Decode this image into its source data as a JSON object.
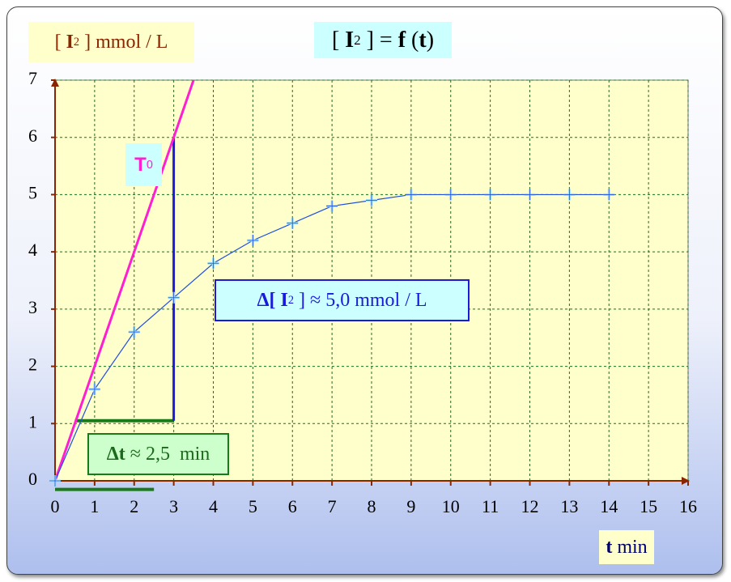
{
  "chart_data": {
    "type": "line",
    "title": [
      "[ ",
      "I",
      "2",
      " ] = ",
      "f",
      " (",
      "t",
      ")"
    ],
    "y_label": [
      "[ ",
      "I",
      "2",
      " ] mmol / L"
    ],
    "x_label": [
      "t",
      " min"
    ],
    "x": [
      0,
      1,
      2,
      3,
      4,
      5,
      6,
      7,
      8,
      9,
      10,
      11,
      12,
      13,
      14
    ],
    "series": [
      {
        "color": "#1f4fe0",
        "marker_color": "#9fe0ff",
        "values": [
          0,
          1.6,
          2.6,
          3.2,
          3.8,
          4.2,
          4.5,
          4.8,
          4.9,
          5,
          5,
          5,
          5,
          5,
          5
        ]
      }
    ],
    "xlim": [
      0,
      16
    ],
    "ylim": [
      0,
      7
    ],
    "xticks": [
      0,
      1,
      2,
      3,
      4,
      5,
      6,
      7,
      8,
      9,
      10,
      11,
      12,
      13,
      14,
      15,
      16
    ],
    "yticks": [
      0,
      1,
      2,
      3,
      4,
      5,
      6,
      7
    ],
    "grid": true,
    "tangent": {
      "label": [
        "T",
        "0"
      ],
      "color": "#ff1fd0",
      "x": [
        0,
        3.5
      ],
      "y": [
        0,
        7
      ]
    },
    "delta_c": {
      "label": [
        "Δ[ ",
        "I",
        "2",
        " ] ≈ 5,0 mmol / L"
      ],
      "color": "#1a1adc",
      "x": [
        3,
        3
      ],
      "y": [
        1.05,
        6
      ]
    },
    "delta_t": {
      "label": [
        "Δt",
        " ≈ 2,5  min"
      ],
      "color": "#1a7a1a",
      "x": [
        0.5,
        3
      ],
      "y": [
        1.05,
        1.05
      ],
      "x2": [
        0,
        2.5
      ],
      "y2": [
        -0.15,
        -0.15
      ]
    }
  }
}
